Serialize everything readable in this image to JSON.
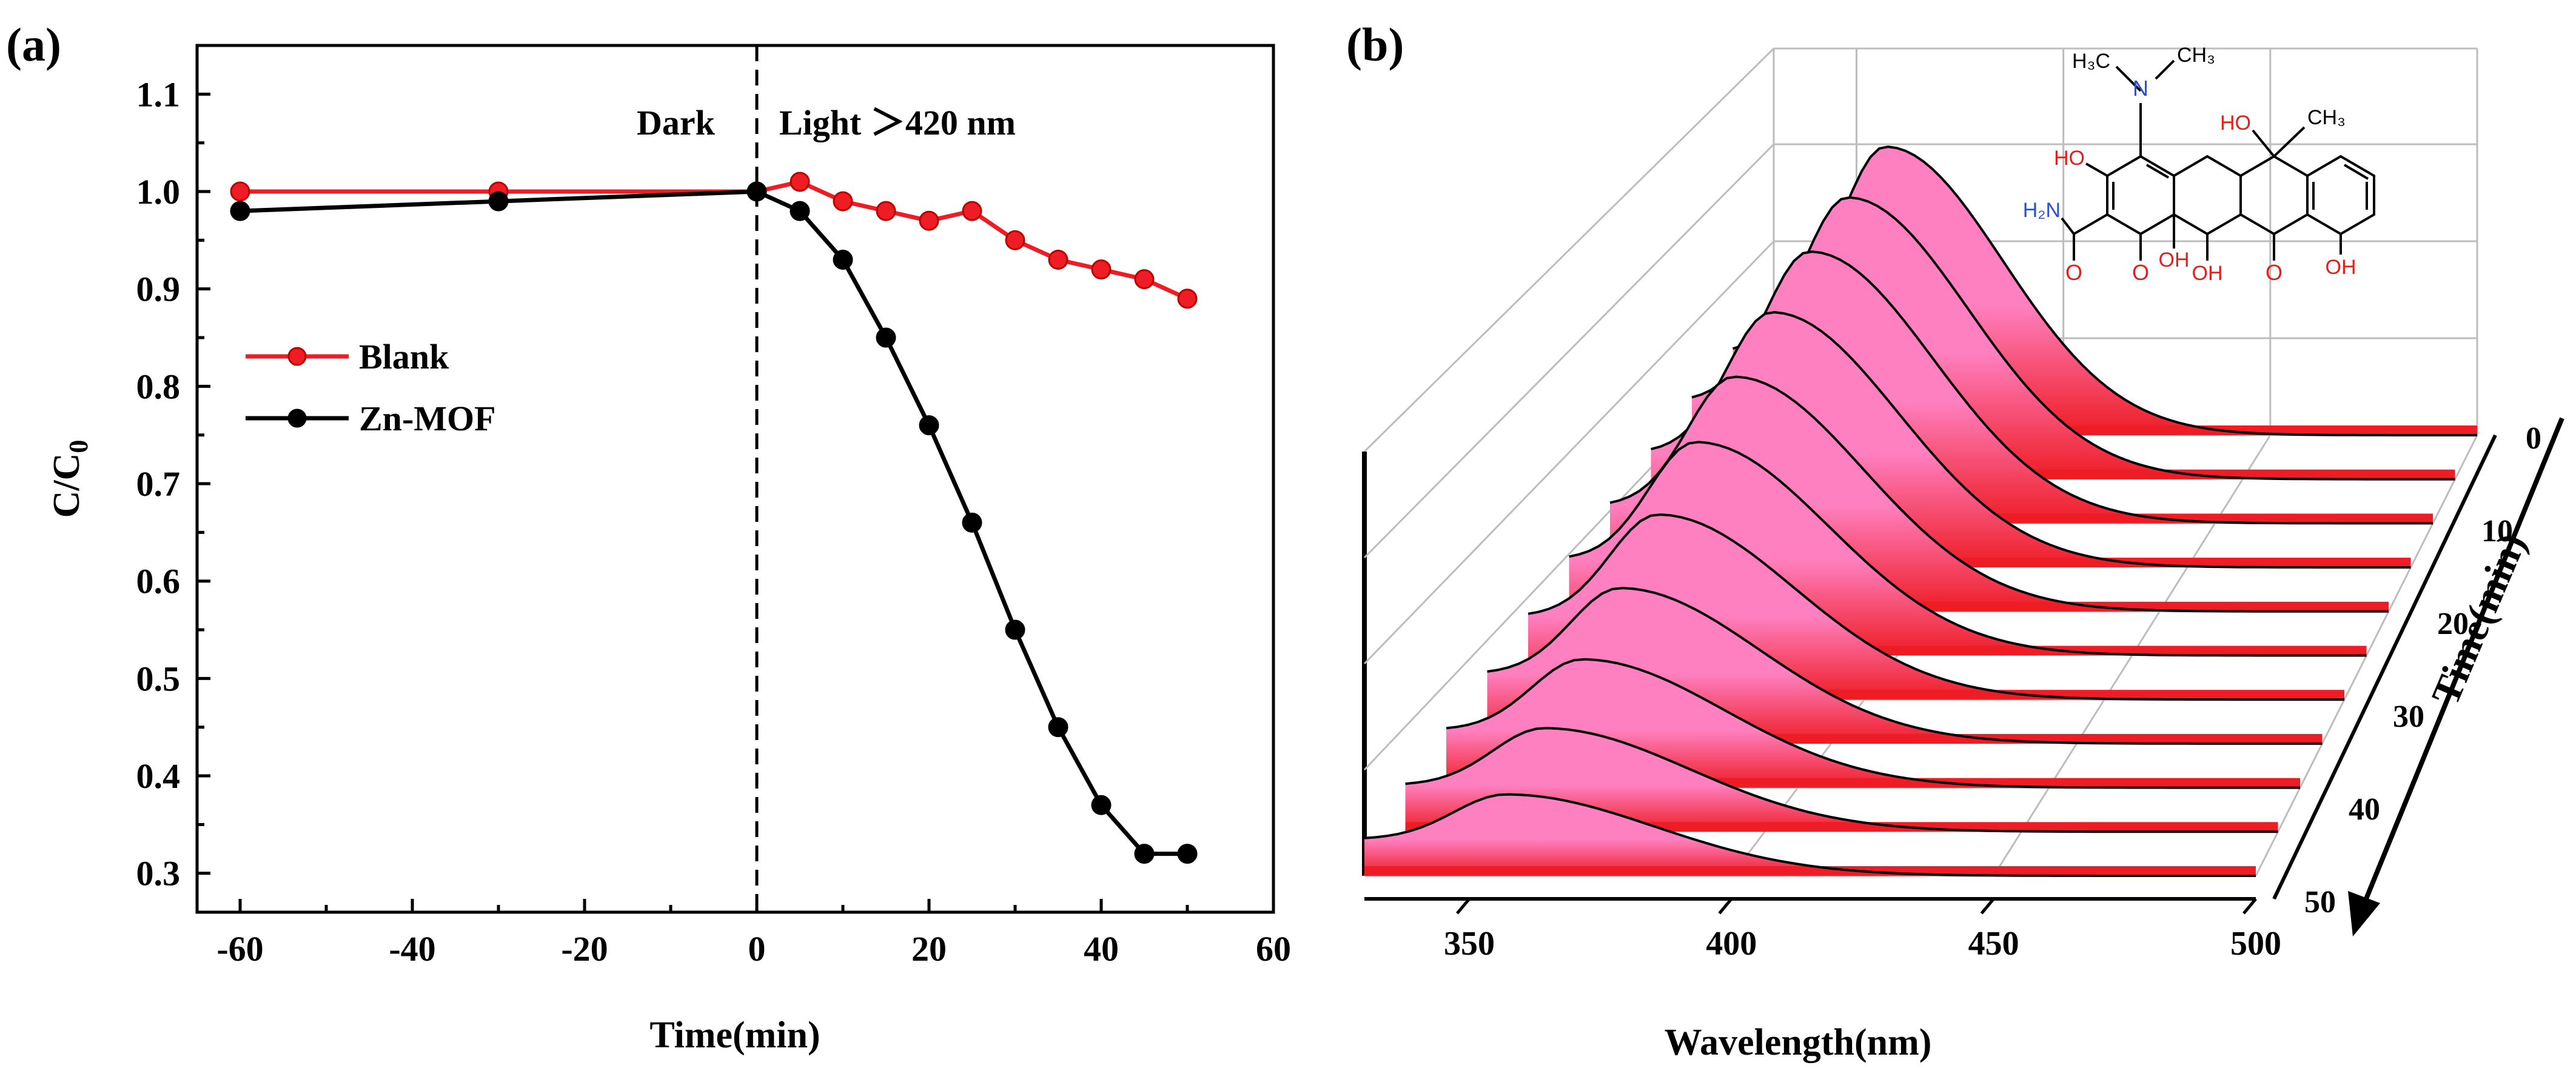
{
  "chart_data": [
    {
      "panel_label": "(a)",
      "type": "line",
      "xlabel": "Time(min)",
      "ylabel_main": "C/C",
      "ylabel_sub": "0",
      "xlim": [
        -65,
        60
      ],
      "ylim": [
        0.26,
        1.15
      ],
      "x_ticks": [
        "-60",
        "-40",
        "-20",
        "0",
        "20",
        "40",
        "60"
      ],
      "x_tick_values": [
        -60,
        -40,
        -20,
        0,
        20,
        40,
        60
      ],
      "y_ticks": [
        "0.3",
        "0.4",
        "0.5",
        "0.6",
        "0.7",
        "0.8",
        "0.9",
        "1.0",
        "1.1"
      ],
      "y_tick_values": [
        0.3,
        0.4,
        0.5,
        0.6,
        0.7,
        0.8,
        0.9,
        1.0,
        1.1
      ],
      "divider_x": 0,
      "annotations": {
        "dark": "Dark",
        "light": "Light ＞420 nm"
      },
      "legend": [
        "Blank",
        "Zn-MOF"
      ],
      "legend_position": "center-left",
      "series": [
        {
          "name": "Blank",
          "color": "#ee1c24",
          "x": [
            -60,
            -30,
            0,
            5,
            10,
            15,
            20,
            25,
            30,
            35,
            40,
            45,
            50
          ],
          "y": [
            1.0,
            1.0,
            1.0,
            1.01,
            0.99,
            0.98,
            0.97,
            0.98,
            0.95,
            0.93,
            0.92,
            0.91,
            0.89
          ]
        },
        {
          "name": "Zn-MOF",
          "color": "#000000",
          "x": [
            -60,
            -30,
            0,
            5,
            10,
            15,
            20,
            25,
            30,
            35,
            40,
            45,
            50
          ],
          "y": [
            0.98,
            0.99,
            1.0,
            0.98,
            0.93,
            0.85,
            0.76,
            0.66,
            0.55,
            0.45,
            0.37,
            0.32,
            0.32
          ]
        }
      ]
    },
    {
      "panel_label": "(b)",
      "type": "area",
      "xlabel": "Wavelength(nm)",
      "depth_label": "Time(min)",
      "xlim": [
        330,
        500
      ],
      "x_ticks": [
        "350",
        "400",
        "450",
        "500"
      ],
      "x_tick_values": [
        350,
        400,
        450,
        500
      ],
      "time_ticks": [
        "0",
        "10",
        "20",
        "30",
        "40",
        "50"
      ],
      "time_tick_values": [
        0,
        10,
        20,
        30,
        40,
        50
      ],
      "times": [
        0,
        5,
        10,
        15,
        20,
        25,
        30,
        35,
        40,
        45,
        50
      ],
      "series": [
        {
          "time": 0,
          "peak_wavelength": 357,
          "peak_height": 1.0
        },
        {
          "time": 5,
          "peak_wavelength": 357,
          "peak_height": 0.96
        },
        {
          "time": 10,
          "peak_wavelength": 357,
          "peak_height": 0.91
        },
        {
          "time": 15,
          "peak_wavelength": 357,
          "peak_height": 0.84
        },
        {
          "time": 20,
          "peak_wavelength": 357,
          "peak_height": 0.76
        },
        {
          "time": 25,
          "peak_wavelength": 357,
          "peak_height": 0.68
        },
        {
          "time": 30,
          "peak_wavelength": 357,
          "peak_height": 0.58
        },
        {
          "time": 35,
          "peak_wavelength": 357,
          "peak_height": 0.48
        },
        {
          "time": 40,
          "peak_wavelength": 357,
          "peak_height": 0.39
        },
        {
          "time": 45,
          "peak_wavelength": 357,
          "peak_height": 0.31
        },
        {
          "time": 50,
          "peak_wavelength": 357,
          "peak_height": 0.24
        }
      ],
      "fill_colors": [
        "#ff80c0",
        "#ee1c24"
      ],
      "molecule_labels": {
        "h3c": "H₃C",
        "ch3_top": "CH₃",
        "n": "N",
        "ho_left": "HO",
        "ho_right": "HO",
        "ch3_right": "CH₃",
        "h2n": "H₂N",
        "o1": "O",
        "o2": "O",
        "oh1": "OH",
        "oh2": "OH",
        "o3": "O",
        "oh3": "OH"
      }
    }
  ]
}
